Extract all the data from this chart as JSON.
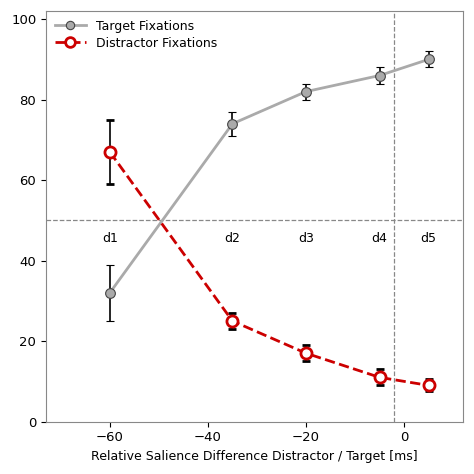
{
  "x_target": [
    -60,
    -35,
    -20,
    -5,
    5
  ],
  "y_target": [
    32,
    74,
    82,
    86,
    90
  ],
  "y_target_err": [
    7,
    3,
    2,
    2,
    2
  ],
  "x_distractor": [
    -60,
    -35,
    -20,
    -5,
    5
  ],
  "y_distractor": [
    67,
    25,
    17,
    11,
    9
  ],
  "y_distractor_err": [
    8,
    2,
    2,
    2,
    1.5
  ],
  "d_labels": [
    "d1",
    "d2",
    "d3",
    "d4",
    "d5"
  ],
  "d_x": [
    -60,
    -35,
    -20,
    -5,
    5
  ],
  "vline_x": -2,
  "hline_y": 50,
  "xlabel": "Relative Salience Difference Distractor / Target [ms]",
  "xlim": [
    -73,
    12
  ],
  "ylim": [
    0,
    102
  ],
  "yticks": [
    0,
    20,
    40,
    60,
    80,
    100
  ],
  "xticks": [
    -60,
    -40,
    -20,
    0
  ],
  "target_color": "#aaaaaa",
  "distractor_color": "#cc0000",
  "target_label": "Target Fixations",
  "distractor_label": "Distractor Fixations",
  "figsize": [
    4.74,
    4.74
  ],
  "dpi": 100
}
